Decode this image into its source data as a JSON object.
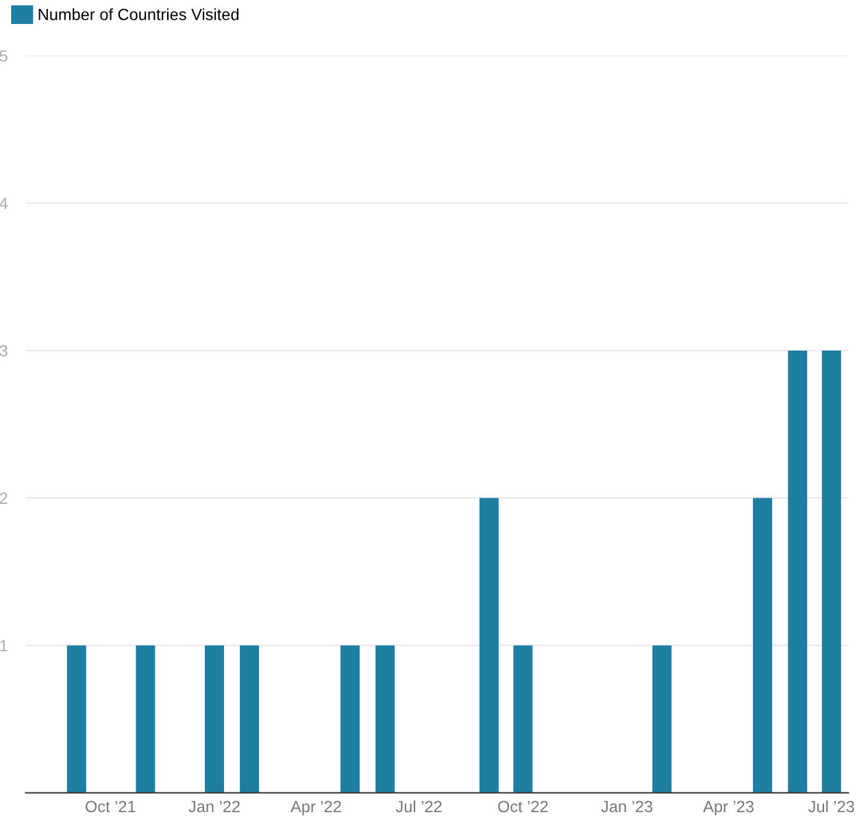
{
  "chart_data": {
    "type": "bar",
    "x": [
      "2021-09",
      "2021-11",
      "2022-01",
      "2022-02",
      "2022-05",
      "2022-06",
      "2022-09",
      "2022-10",
      "2023-02",
      "2023-05",
      "2023-06",
      "2023-07"
    ],
    "series": [
      {
        "name": "Number of Countries Visited",
        "color": "#1f7fa3",
        "values": [
          1,
          1,
          1,
          1,
          1,
          1,
          2,
          1,
          1,
          2,
          3,
          3
        ]
      }
    ],
    "xlim": [
      "2021-07-18",
      "2023-07-16"
    ],
    "xticks": [
      {
        "value": "2021-10",
        "label": "Oct ’21"
      },
      {
        "value": "2022-01",
        "label": "Jan ’22"
      },
      {
        "value": "2022-04",
        "label": "Apr ’22"
      },
      {
        "value": "2022-07",
        "label": "Jul ’22"
      },
      {
        "value": "2022-10",
        "label": "Oct ’22"
      },
      {
        "value": "2023-01",
        "label": "Jan ’23"
      },
      {
        "value": "2023-04",
        "label": "Apr ’23"
      },
      {
        "value": "2023-07",
        "label": "Jul ’23"
      }
    ],
    "ylim": [
      0,
      5
    ],
    "yticks": [
      1,
      2,
      3,
      4,
      5
    ],
    "grid": "y",
    "legend": "top left"
  }
}
